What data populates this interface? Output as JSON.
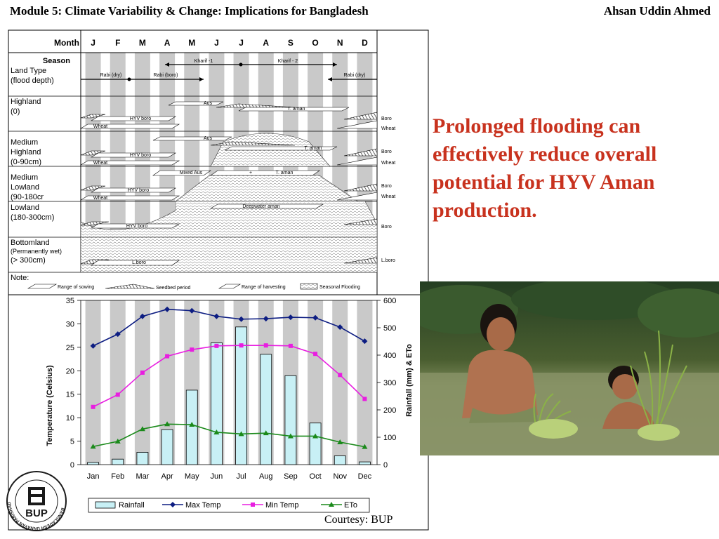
{
  "header": {
    "module_title": "Module 5: Climate Variability & Change: Implications for Bangladesh",
    "author": "Ahsan Uddin Ahmed"
  },
  "statement": "Prolonged flooding can effectively reduce overall potential for HYV Aman production.",
  "courtesy": "Courtesy: BUP",
  "logo": {
    "text": "BUP",
    "ring_text": "BANGLADESH UNNAYAN PARISHAD",
    "colors": {
      "ring": "#1a1a1a",
      "bg": "#ffffff"
    }
  },
  "photo": {
    "colors": {
      "sky": "#2d4a2a",
      "water": "#7e8d5e",
      "skin": "#b0704e",
      "rice": "#7fa640"
    }
  },
  "calendar": {
    "month_label": "Month",
    "months": [
      "J",
      "F",
      "M",
      "A",
      "M",
      "J",
      "J",
      "A",
      "S",
      "O",
      "N",
      "D"
    ],
    "season_label": "Season",
    "land_type_label": [
      "Land Type",
      "(flood depth)"
    ],
    "seasons": {
      "kharif1": "Kharif -1",
      "kharif2": "Kharif - 2",
      "rabi_dry_left": "Rabi (dry)",
      "rabi_boro": "Rabi (boro)",
      "rabi_dry_right": "Rabi (dry)"
    },
    "rows": [
      {
        "label": [
          "Highland",
          "(0)"
        ],
        "crops": {
          "aus": "Aus",
          "t_aman": "T. aman",
          "hyv_boro": "HYV boro",
          "wheat": "Wheat"
        },
        "right": [
          "Boro",
          "Wheat"
        ]
      },
      {
        "label": [
          "Medium",
          "Highland",
          "(0-90cm)"
        ],
        "crops": {
          "aus": "Aus",
          "t_aman": "T. aman",
          "hyv_boro": "HYV boro",
          "wheat": "Wheat"
        },
        "right": [
          "Boro",
          "Wheat"
        ]
      },
      {
        "label": [
          "Medium",
          "Lowland",
          "(90-180cr"
        ],
        "crops": {
          "mixed_aus": "Mixed Aus",
          "plus": "+",
          "t_aman": "T. aman",
          "hyv_boro": "HYV boro",
          "wheat": "Wheat"
        },
        "right": [
          "Boro",
          "Wheat"
        ]
      },
      {
        "label": [
          "Lowland",
          "(180-300cm)"
        ],
        "crops": {
          "deepwater_aman": "Deepwater aman",
          "hyv_boro": "HYV boro"
        },
        "right": [
          "Boro"
        ]
      },
      {
        "label": [
          "Bottomland",
          "(Permanently wet)",
          "(> 300cm)"
        ],
        "crops": {
          "l_boro": "L.boro"
        },
        "right": [
          "L.boro"
        ]
      }
    ],
    "note_label": "Note:",
    "legend": {
      "sowing": "Range of sowing",
      "seedbed": "Seedbed period",
      "harvesting": "Range of harvesting",
      "flooding": "Seasonal Flooding"
    }
  },
  "chart_data": {
    "type": "bar",
    "categories": [
      "Jan",
      "Feb",
      "Mar",
      "Apr",
      "May",
      "Jun",
      "Jul",
      "Aug",
      "Sep",
      "Oct",
      "Nov",
      "Dec"
    ],
    "ylabel": "Temperature (Celsius)",
    "y2label": "Rainfall (mm) & ETo",
    "ylim": [
      0,
      35
    ],
    "y2lim": [
      0,
      600
    ],
    "yticks": [
      "0",
      "5",
      "10",
      "15",
      "20",
      "25",
      "30",
      "35"
    ],
    "y2ticks": [
      "0",
      "100",
      "200",
      "300",
      "400",
      "500",
      "600"
    ],
    "grid": false,
    "legend_position": "bottom",
    "bars": {
      "name": "Rainfall",
      "axis": "right",
      "color": "#c8f0f5",
      "values": [
        8,
        20,
        45,
        128,
        272,
        445,
        503,
        403,
        325,
        152,
        32,
        10
      ]
    },
    "series": [
      {
        "name": "Max Temp",
        "axis": "left",
        "color": "#0d1d82",
        "marker": "diamond",
        "values": [
          25.3,
          27.8,
          31.6,
          33.1,
          32.8,
          31.6,
          31.0,
          31.1,
          31.4,
          31.3,
          29.3,
          26.3
        ]
      },
      {
        "name": "Min Temp",
        "axis": "left",
        "color": "#e81ee0",
        "marker": "square",
        "values": [
          12.3,
          14.9,
          19.6,
          23.1,
          24.5,
          25.3,
          25.4,
          25.4,
          25.3,
          23.6,
          19.1,
          14.0
        ]
      },
      {
        "name": "ETo",
        "axis": "right",
        "color": "#1b8a1b",
        "marker": "triangle",
        "values": [
          66,
          85,
          130,
          148,
          146,
          118,
          112,
          115,
          104,
          104,
          82,
          65
        ]
      }
    ]
  }
}
